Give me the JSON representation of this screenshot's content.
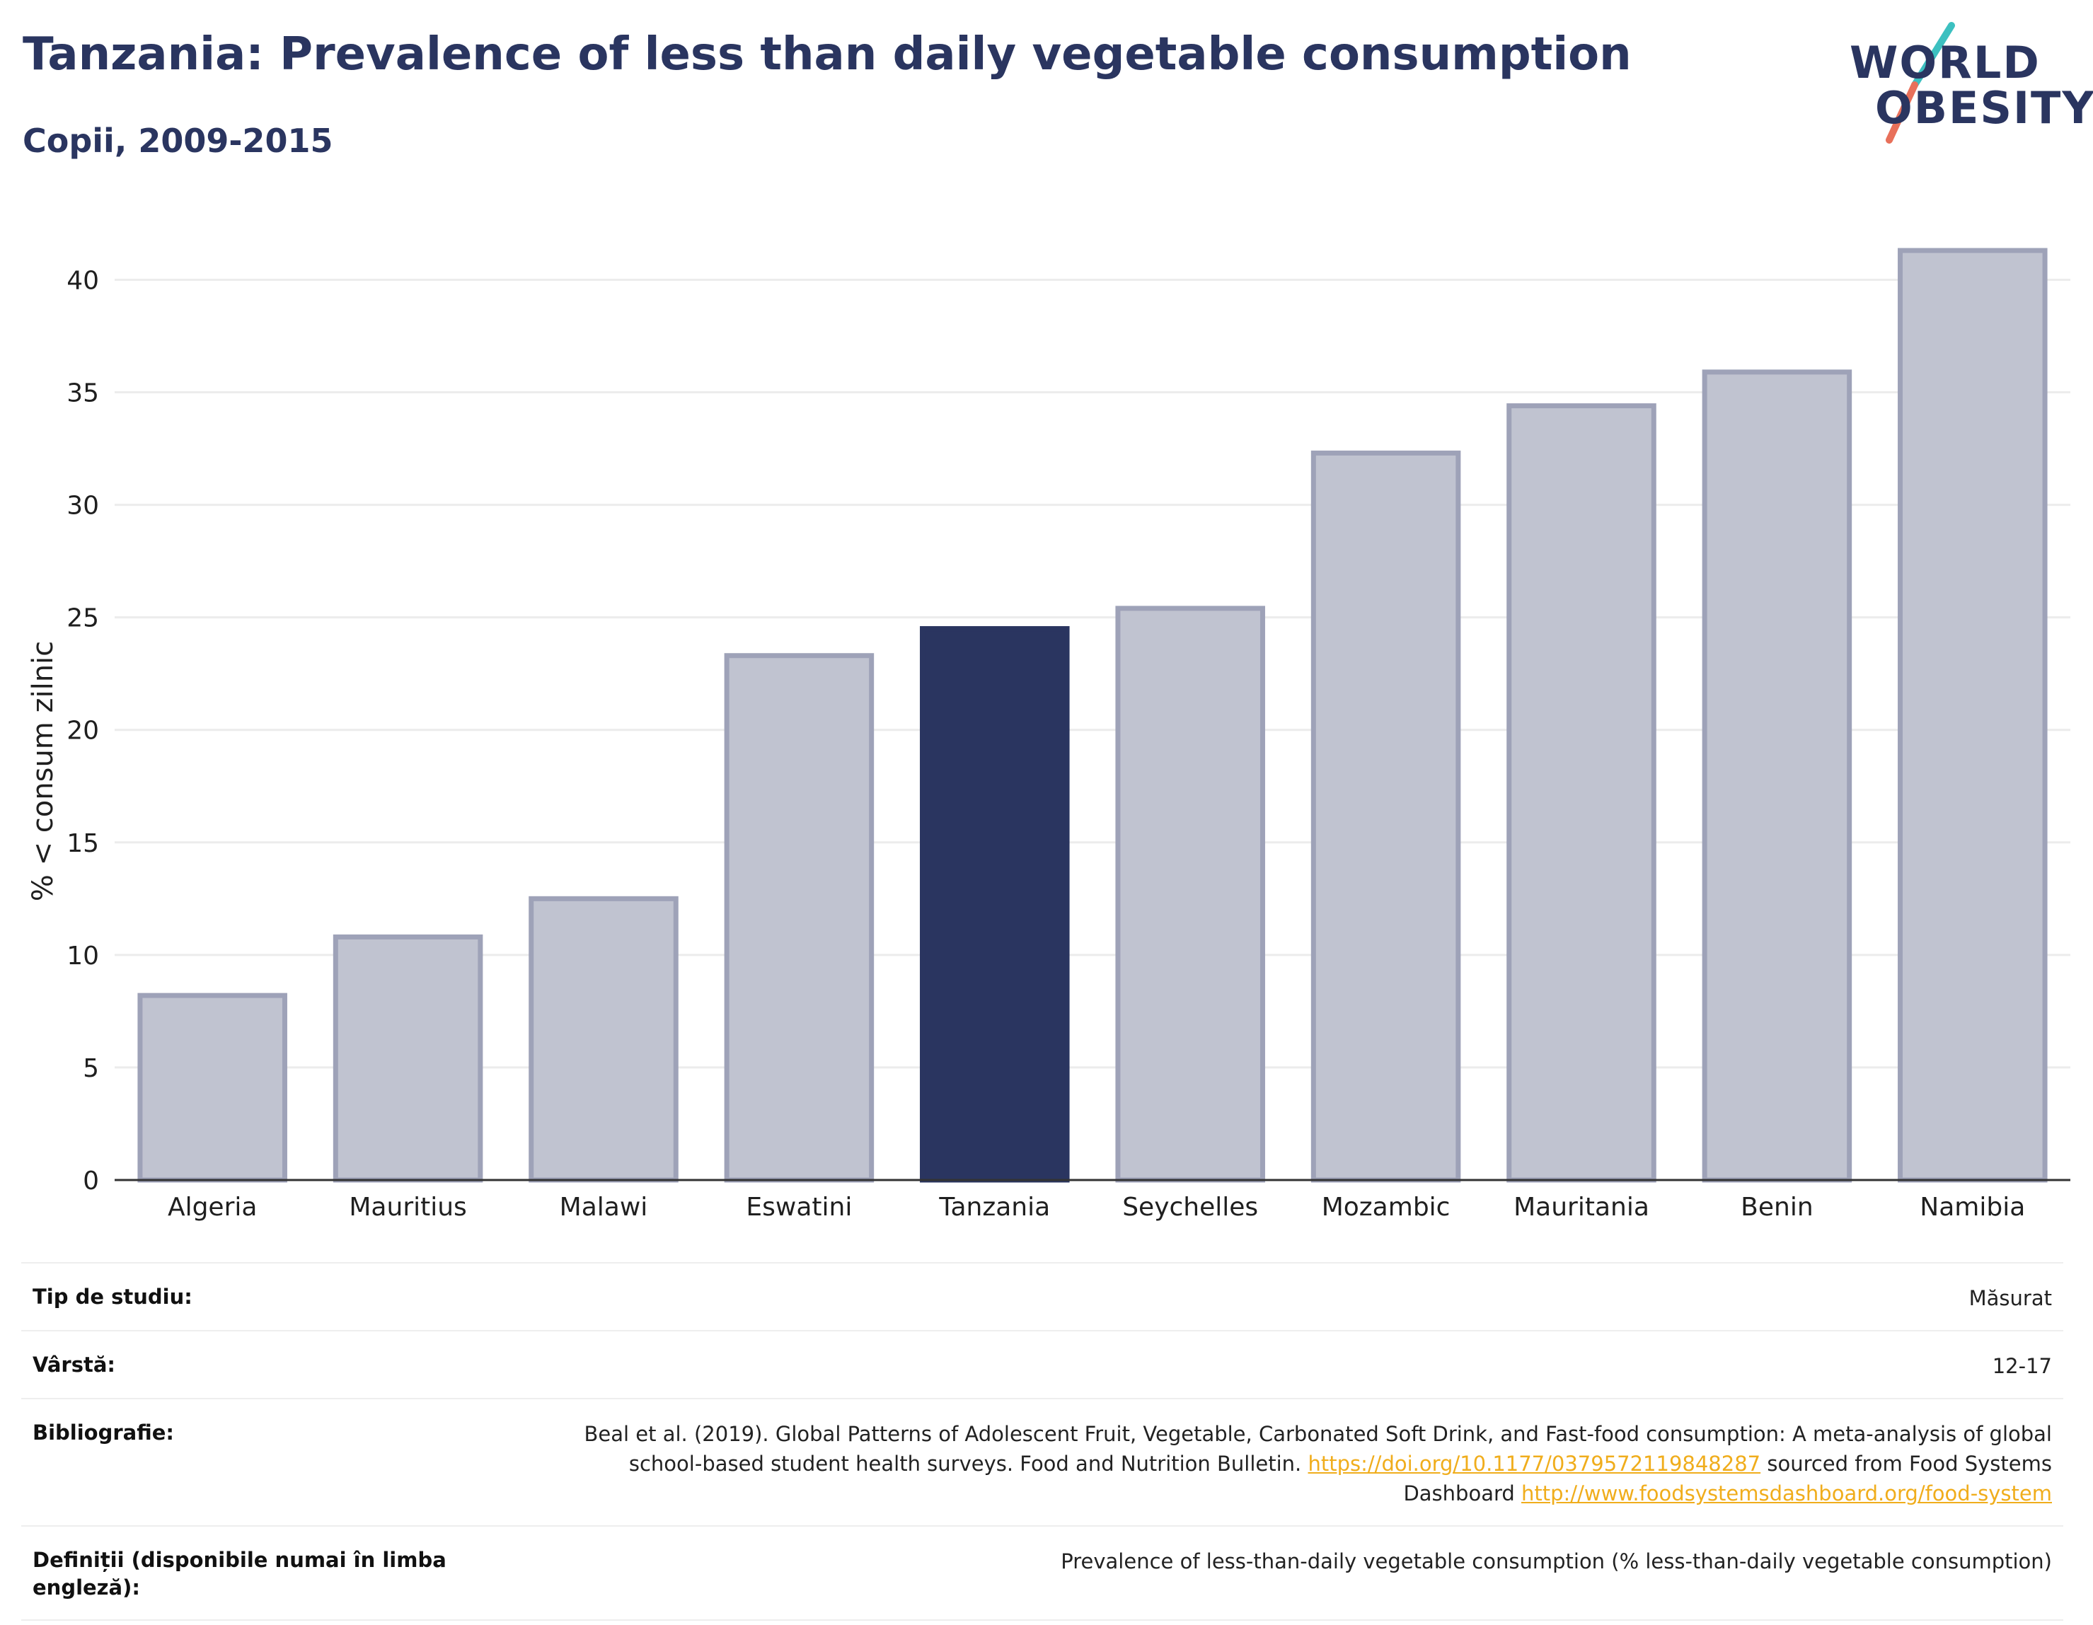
{
  "header": {
    "title": "Tanzania: Prevalence of less than daily vegetable consumption",
    "subtitle": "Copii, 2009-2015"
  },
  "logo": {
    "line1": "WORLD",
    "line2": "OBESITY",
    "colors": {
      "text": "#2a3560",
      "slash_top": "#3cc0c0",
      "slash_bottom": "#e8705a"
    }
  },
  "colors": {
    "highlight": "#2a3560",
    "other_fill": "#c0c3d0",
    "other_stroke": "#9ea2b8",
    "grid": "#ececec",
    "link": "#f0ad1c"
  },
  "chart_data": {
    "type": "bar",
    "categories": [
      "Algeria",
      "Mauritius",
      "Malawi",
      "Eswatini",
      "Tanzania",
      "Seychelles",
      "Mozambic",
      "Mauritania",
      "Benin",
      "Namibia"
    ],
    "values": [
      8.2,
      10.8,
      12.5,
      23.3,
      24.5,
      25.4,
      32.3,
      34.4,
      35.9,
      41.3
    ],
    "highlight": "Tanzania",
    "ylabel": "% < consum zilnic",
    "xlabel": "",
    "ylim": [
      0,
      43
    ],
    "yticks": [
      0,
      5,
      10,
      15,
      20,
      25,
      30,
      35,
      40
    ],
    "grid": true
  },
  "meta": {
    "study_type_label": "Tip de studiu:",
    "study_type_value": "Măsurat",
    "age_label": "Vârstă:",
    "age_value": "12-17",
    "bibliography_label": "Bibliografie:",
    "bibliography_text1": "Beal et al. (2019). Global Patterns of Adolescent Fruit, Vegetable, Carbonated Soft Drink, and Fast-food consumption: A meta-analysis of global school-based student health surveys. Food and Nutrition Bulletin. ",
    "bibliography_link1": "https://doi.org/10.1177/0379572119848287",
    "bibliography_text2": " sourced from Food Systems Dashboard ",
    "bibliography_link2": "http://www.foodsystemsdashboard.org/food-system",
    "definitions_label": "Definiții (disponibile numai în limba engleză):",
    "definitions_value": "Prevalence of less-than-daily vegetable consumption (% less-than-daily vegetable consumption)"
  }
}
